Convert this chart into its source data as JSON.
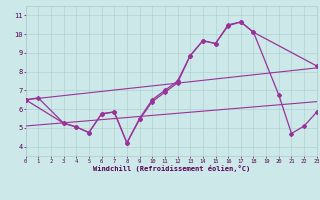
{
  "background_color": "#cce8e8",
  "grid_color": "#aaccaa",
  "line_color": "#993399",
  "xlabel": "Windchill (Refroidissement éolien,°C)",
  "xlim": [
    0,
    23
  ],
  "ylim": [
    3.5,
    11.5
  ],
  "yticks": [
    4,
    5,
    6,
    7,
    8,
    9,
    10,
    11
  ],
  "xticks": [
    0,
    1,
    2,
    3,
    4,
    5,
    6,
    7,
    8,
    9,
    10,
    11,
    12,
    13,
    14,
    15,
    16,
    17,
    18,
    19,
    20,
    21,
    22,
    23
  ],
  "line1_x": [
    0,
    23
  ],
  "line1_y": [
    6.5,
    8.2
  ],
  "line2_x": [
    0,
    23
  ],
  "line2_y": [
    5.1,
    6.4
  ],
  "line3_x": [
    0,
    1,
    3,
    4,
    5,
    6,
    7,
    8,
    9,
    10,
    11,
    12,
    13,
    14,
    15,
    16,
    17,
    18,
    23
  ],
  "line3_y": [
    6.5,
    6.6,
    5.25,
    5.05,
    4.75,
    5.75,
    5.85,
    4.2,
    5.5,
    6.5,
    7.0,
    7.5,
    8.85,
    9.65,
    9.5,
    10.5,
    10.65,
    10.1,
    8.3
  ],
  "line4_x": [
    0,
    3,
    4,
    5,
    6,
    7,
    8,
    9,
    10,
    11,
    12,
    13,
    14,
    15,
    16,
    17,
    18,
    20,
    21,
    22,
    23
  ],
  "line4_y": [
    6.5,
    5.25,
    5.05,
    4.75,
    5.75,
    5.85,
    4.2,
    5.45,
    6.4,
    6.9,
    7.4,
    8.85,
    9.65,
    9.5,
    10.45,
    10.65,
    10.1,
    6.75,
    4.7,
    5.1,
    5.85
  ]
}
